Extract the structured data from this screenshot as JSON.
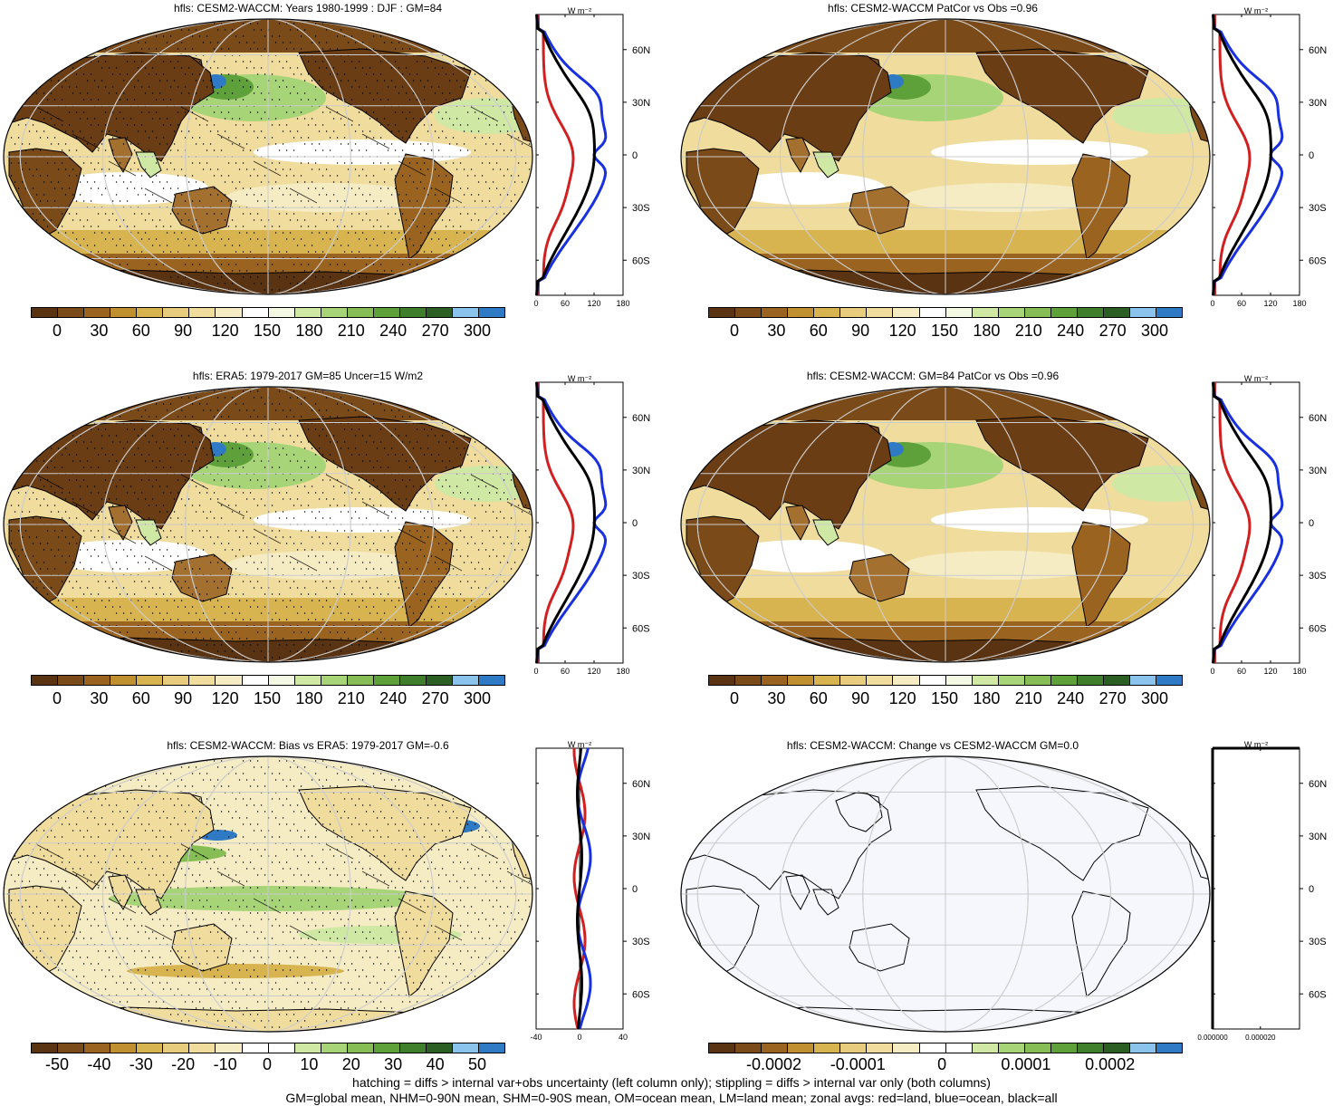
{
  "palette_abs": [
    "#5a3412",
    "#7a4a18",
    "#9a6420",
    "#c09030",
    "#d8b450",
    "#e6cc7c",
    "#f0dc9c",
    "#f6ecc4",
    "#ffffff",
    "#f4f9e4",
    "#cfe8a4",
    "#a8d478",
    "#86be55",
    "#5ea03a",
    "#3f7e2a",
    "#2a5e22",
    "#8ac4ec",
    "#2f7ac4"
  ],
  "palette_diff": [
    "#5a3412",
    "#7a4a18",
    "#9a6420",
    "#c09030",
    "#d8b450",
    "#e6cc7c",
    "#f0dc9c",
    "#f6ecc4",
    "#ffffff",
    "#ffffff",
    "#cfe8a4",
    "#a8d478",
    "#86be55",
    "#5ea03a",
    "#3f7e2a",
    "#2a5e22",
    "#8ac4ec",
    "#2f7ac4"
  ],
  "colors": {
    "land": "#d22020",
    "ocean": "#1830e0",
    "all": "#000000"
  },
  "zonal_unit": "W m⁻²",
  "lat_ticks": [
    "60N",
    "30N",
    "0",
    "30S",
    "60S"
  ],
  "panels": [
    {
      "id": "p1",
      "title": "hfls: CESM2-WACCM: Years 1980-1999 : DJF : GM=84",
      "cb_ticks": [
        "0",
        "30",
        "60",
        "90",
        "120",
        "150",
        "180",
        "210",
        "240",
        "270",
        "300"
      ],
      "zonal_x_ticks": [
        "0",
        "60",
        "120",
        "180"
      ],
      "map_style": "abs",
      "hatch": true,
      "stipple": true
    },
    {
      "id": "p2",
      "title": "hfls: CESM2-WACCM PatCor vs Obs =0.96",
      "cb_ticks": [
        "0",
        "30",
        "60",
        "90",
        "120",
        "150",
        "180",
        "210",
        "240",
        "270",
        "300"
      ],
      "zonal_x_ticks": [
        "0",
        "60",
        "120",
        "180"
      ],
      "map_style": "abs",
      "hatch": false,
      "stipple": false
    },
    {
      "id": "p3",
      "title": "hfls: ERA5: 1979-2017 GM=85 Uncer=15 W/m2",
      "cb_ticks": [
        "0",
        "30",
        "60",
        "90",
        "120",
        "150",
        "180",
        "210",
        "240",
        "270",
        "300"
      ],
      "zonal_x_ticks": [
        "0",
        "60",
        "120",
        "180"
      ],
      "map_style": "abs",
      "hatch": true,
      "stipple": true
    },
    {
      "id": "p4",
      "title": "hfls: CESM2-WACCM: GM=84 PatCor vs Obs =0.96",
      "cb_ticks": [
        "0",
        "30",
        "60",
        "90",
        "120",
        "150",
        "180",
        "210",
        "240",
        "270",
        "300"
      ],
      "zonal_x_ticks": [
        "0",
        "60",
        "120",
        "180"
      ],
      "map_style": "abs",
      "hatch": false,
      "stipple": false
    },
    {
      "id": "p5",
      "title": "hfls: CESM2-WACCM: Bias vs ERA5: 1979-2017 GM=-0.6",
      "cb_ticks": [
        "-50",
        "-40",
        "-30",
        "-20",
        "-10",
        "0",
        "10",
        "20",
        "30",
        "40",
        "50"
      ],
      "zonal_x_ticks": [
        "-40",
        "0",
        "40"
      ],
      "map_style": "diff",
      "hatch": true,
      "stipple": true
    },
    {
      "id": "p6",
      "title": "hfls: CESM2-WACCM: Change vs CESM2-WACCM GM=0.0",
      "cb_ticks": [
        "-0.0002",
        "-0.0001",
        "0",
        "0.0001",
        "0.0002"
      ],
      "zonal_x_ticks": [
        "0.000000",
        "0.000020"
      ],
      "map_style": "empty",
      "hatch": false,
      "stipple": false
    }
  ],
  "footnote": {
    "line1": "hatching = diffs > internal var+obs uncertainty (left column only); stippling = diffs > internal var only (both columns)",
    "line2": "GM=global mean, NHM=0-90N mean, SHM=0-90S mean, OM=ocean mean, LM=land mean; zonal avgs: red=land, blue=ocean, black=all"
  }
}
